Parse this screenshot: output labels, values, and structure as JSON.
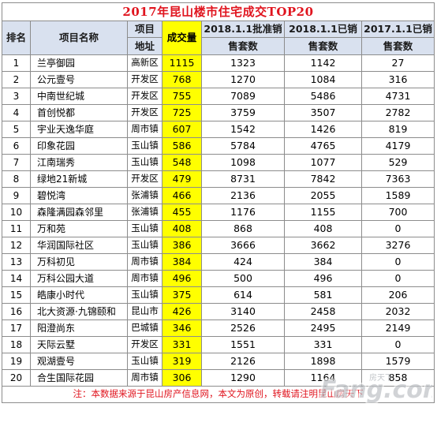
{
  "title": "2017年昆山楼市住宅成交TOP20",
  "headers": {
    "rank": "排名",
    "project": "项目名称",
    "area_line1": "项目",
    "area_line2": "地址",
    "volume": "成交量",
    "approved_line1": "2018.1.1批准销",
    "approved_line2": "售套数",
    "sold2018_line1": "2018.1.1已销",
    "sold2018_line2": "售套数",
    "sold2017_line1": "2017.1.1已销",
    "sold2017_line2": "售套数"
  },
  "rows": [
    {
      "rank": "1",
      "project": "兰亭御园",
      "area": "高新区",
      "volume": "1115",
      "approved": "1323",
      "sold_2018": "1142",
      "sold_2017": "27"
    },
    {
      "rank": "2",
      "project": "公元壹号",
      "area": "开发区",
      "volume": "768",
      "approved": "1270",
      "sold_2018": "1084",
      "sold_2017": "316"
    },
    {
      "rank": "3",
      "project": "中南世纪城",
      "area": "开发区",
      "volume": "755",
      "approved": "7089",
      "sold_2018": "5486",
      "sold_2017": "4731"
    },
    {
      "rank": "4",
      "project": "首创悦都",
      "area": "开发区",
      "volume": "725",
      "approved": "3759",
      "sold_2018": "3507",
      "sold_2017": "2782"
    },
    {
      "rank": "5",
      "project": "宇业天逸华庭",
      "area": "周市镇",
      "volume": "607",
      "approved": "1542",
      "sold_2018": "1426",
      "sold_2017": "819"
    },
    {
      "rank": "6",
      "project": "印象花园",
      "area": "玉山镇",
      "volume": "586",
      "approved": "5784",
      "sold_2018": "4765",
      "sold_2017": "4179"
    },
    {
      "rank": "7",
      "project": "江南瑞秀",
      "area": "玉山镇",
      "volume": "548",
      "approved": "1098",
      "sold_2018": "1077",
      "sold_2017": "529"
    },
    {
      "rank": "8",
      "project": "绿地21新城",
      "area": "开发区",
      "volume": "479",
      "approved": "8731",
      "sold_2018": "7842",
      "sold_2017": "7363"
    },
    {
      "rank": "9",
      "project": "碧悦湾",
      "area": "张浦镇",
      "volume": "466",
      "approved": "2136",
      "sold_2018": "2055",
      "sold_2017": "1589"
    },
    {
      "rank": "10",
      "project": "森隆满园森邻里",
      "area": "张浦镇",
      "volume": "455",
      "approved": "1176",
      "sold_2018": "1155",
      "sold_2017": "700"
    },
    {
      "rank": "11",
      "project": "万和苑",
      "area": "玉山镇",
      "volume": "408",
      "approved": "868",
      "sold_2018": "408",
      "sold_2017": "0"
    },
    {
      "rank": "12",
      "project": "华润国际社区",
      "area": "玉山镇",
      "volume": "386",
      "approved": "3666",
      "sold_2018": "3662",
      "sold_2017": "3276"
    },
    {
      "rank": "13",
      "project": "万科初见",
      "area": "周市镇",
      "volume": "384",
      "approved": "424",
      "sold_2018": "384",
      "sold_2017": "0"
    },
    {
      "rank": "14",
      "project": "万科公园大道",
      "area": "周市镇",
      "volume": "496",
      "approved": "500",
      "sold_2018": "496",
      "sold_2017": "0"
    },
    {
      "rank": "15",
      "project": "皓康小时代",
      "area": "玉山镇",
      "volume": "375",
      "approved": "614",
      "sold_2018": "581",
      "sold_2017": "206"
    },
    {
      "rank": "16",
      "project": "北大资源·九锦颐和",
      "area": "昆山市",
      "volume": "426",
      "approved": "3140",
      "sold_2018": "2458",
      "sold_2017": "2032"
    },
    {
      "rank": "17",
      "project": "阳澄尚东",
      "area": "巴城镇",
      "volume": "346",
      "approved": "2526",
      "sold_2018": "2495",
      "sold_2017": "2149"
    },
    {
      "rank": "18",
      "project": "天际云墅",
      "area": "开发区",
      "volume": "331",
      "approved": "1551",
      "sold_2018": "331",
      "sold_2017": "0"
    },
    {
      "rank": "19",
      "project": "观湖壹号",
      "area": "玉山镇",
      "volume": "319",
      "approved": "2126",
      "sold_2018": "1898",
      "sold_2017": "1579"
    },
    {
      "rank": "20",
      "project": "合生国际花园",
      "area": "周市镇",
      "volume": "306",
      "approved": "1290",
      "sold_2018": "1164",
      "sold_2017": "858"
    }
  ],
  "footnote": "注：本数据来源于昆山房产信息网，本文为原创，转载请注明昆山房天下",
  "watermark": {
    "logo_text": "Fang.com",
    "mark_text": "房天下",
    "icon": "fang-logo-watermark"
  }
}
